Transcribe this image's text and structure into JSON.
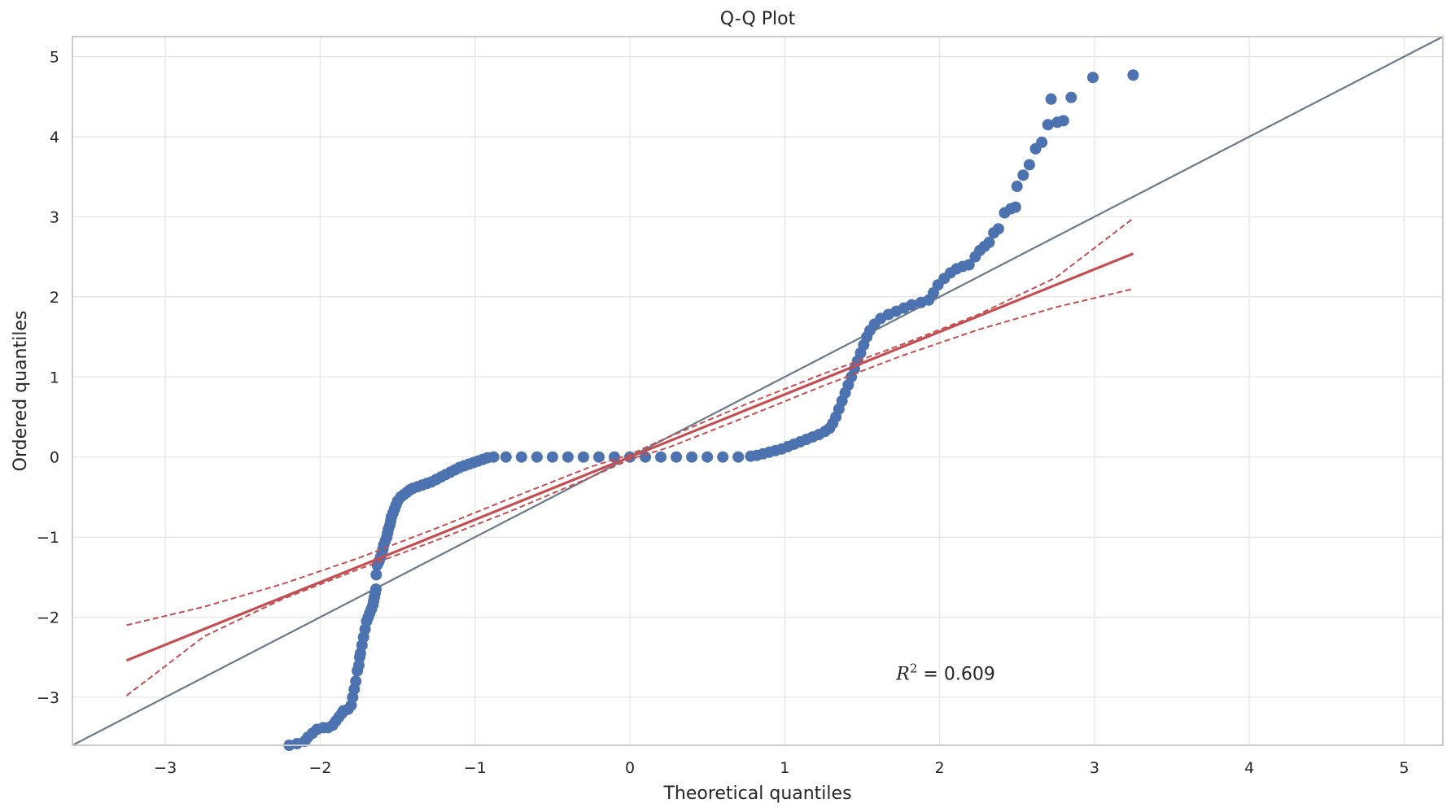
{
  "chart_data": {
    "type": "scatter",
    "title": "Q-Q Plot",
    "xlabel": "Theoretical quantiles",
    "ylabel": "Ordered quantiles",
    "xlim": [
      -3.6,
      5.25
    ],
    "ylim": [
      -3.6,
      5.25
    ],
    "x_ticks": [
      -3,
      -2,
      -1,
      0,
      1,
      2,
      3,
      4,
      5
    ],
    "y_ticks": [
      -3,
      -2,
      -1,
      0,
      1,
      2,
      3,
      4,
      5
    ],
    "x_tick_labels": [
      "−3",
      "−2",
      "−1",
      "0",
      "1",
      "2",
      "3",
      "4",
      "5"
    ],
    "y_tick_labels": [
      "−3",
      "−2",
      "−1",
      "0",
      "1",
      "2",
      "3",
      "4",
      "5"
    ],
    "grid": true,
    "annotation": {
      "prefix": "R",
      "sup": "2",
      "rest": " = 0.609",
      "x": 1.72,
      "y": -2.7
    },
    "colors": {
      "points": "#4c72b0",
      "fit": "#c44e52",
      "reference": "#6c7a89",
      "grid": "#e4e4e4",
      "spine": "#cccccc"
    },
    "reference_line": {
      "x": [
        -3.6,
        5.25
      ],
      "y": [
        -3.6,
        5.25
      ]
    },
    "fit_line": {
      "x": [
        -3.25,
        3.25
      ],
      "y": [
        -2.54,
        2.54
      ]
    },
    "confidence_band": {
      "x": [
        -3.25,
        -2.75,
        -2.25,
        -1.75,
        -1.25,
        -0.75,
        -0.25,
        0,
        0.25,
        0.75,
        1.25,
        1.75,
        2.25,
        2.75,
        3.25
      ],
      "upper": [
        -2.1,
        -1.87,
        -1.59,
        -1.26,
        -0.89,
        -0.5,
        -0.12,
        0.03,
        0.25,
        0.66,
        1.04,
        1.4,
        1.78,
        2.24,
        2.98
      ],
      "lower": [
        -2.98,
        -2.24,
        -1.78,
        -1.4,
        -1.04,
        -0.66,
        -0.25,
        -0.03,
        0.12,
        0.5,
        0.89,
        1.26,
        1.59,
        1.87,
        2.1
      ]
    },
    "points": [
      [
        -2.2,
        -3.6
      ],
      [
        -2.15,
        -3.58
      ],
      [
        -2.1,
        -3.55
      ],
      [
        -2.08,
        -3.5
      ],
      [
        -2.05,
        -3.45
      ],
      [
        -2.02,
        -3.4
      ],
      [
        -1.98,
        -3.38
      ],
      [
        -1.95,
        -3.38
      ],
      [
        -1.92,
        -3.35
      ],
      [
        -1.9,
        -3.3
      ],
      [
        -1.88,
        -3.25
      ],
      [
        -1.86,
        -3.2
      ],
      [
        -1.85,
        -3.17
      ],
      [
        -1.82,
        -3.15
      ],
      [
        -1.8,
        -3.1
      ],
      [
        -1.79,
        -3.0
      ],
      [
        -1.78,
        -2.9
      ],
      [
        -1.77,
        -2.8
      ],
      [
        -1.76,
        -2.67
      ],
      [
        -1.75,
        -2.6
      ],
      [
        -1.745,
        -2.5
      ],
      [
        -1.74,
        -2.45
      ],
      [
        -1.73,
        -2.35
      ],
      [
        -1.72,
        -2.25
      ],
      [
        -1.71,
        -2.15
      ],
      [
        -1.7,
        -2.05
      ],
      [
        -1.69,
        -2.0
      ],
      [
        -1.68,
        -1.95
      ],
      [
        -1.67,
        -1.9
      ],
      [
        -1.66,
        -1.85
      ],
      [
        -1.655,
        -1.8
      ],
      [
        -1.65,
        -1.75
      ],
      [
        -1.645,
        -1.7
      ],
      [
        -1.64,
        -1.65
      ],
      [
        -1.638,
        -1.47
      ],
      [
        -1.632,
        -1.35
      ],
      [
        -1.625,
        -1.32
      ],
      [
        -1.62,
        -1.3
      ],
      [
        -1.61,
        -1.25
      ],
      [
        -1.6,
        -1.2
      ],
      [
        -1.595,
        -1.15
      ],
      [
        -1.59,
        -1.1
      ],
      [
        -1.58,
        -1.05
      ],
      [
        -1.57,
        -1.0
      ],
      [
        -1.565,
        -0.95
      ],
      [
        -1.56,
        -0.9
      ],
      [
        -1.55,
        -0.85
      ],
      [
        -1.545,
        -0.8
      ],
      [
        -1.54,
        -0.75
      ],
      [
        -1.53,
        -0.7
      ],
      [
        -1.52,
        -0.65
      ],
      [
        -1.51,
        -0.6
      ],
      [
        -1.5,
        -0.55
      ],
      [
        -1.48,
        -0.5
      ],
      [
        -1.46,
        -0.47
      ],
      [
        -1.44,
        -0.44
      ],
      [
        -1.42,
        -0.41
      ],
      [
        -1.4,
        -0.39
      ],
      [
        -1.37,
        -0.37
      ],
      [
        -1.34,
        -0.35
      ],
      [
        -1.31,
        -0.33
      ],
      [
        -1.28,
        -0.31
      ],
      [
        -1.25,
        -0.28
      ],
      [
        -1.22,
        -0.25
      ],
      [
        -1.19,
        -0.22
      ],
      [
        -1.16,
        -0.19
      ],
      [
        -1.13,
        -0.16
      ],
      [
        -1.1,
        -0.13
      ],
      [
        -1.07,
        -0.11
      ],
      [
        -1.04,
        -0.09
      ],
      [
        -1.01,
        -0.07
      ],
      [
        -0.98,
        -0.05
      ],
      [
        -0.95,
        -0.03
      ],
      [
        -0.92,
        -0.01
      ],
      [
        -0.88,
        0.0
      ],
      [
        -0.8,
        0.0
      ],
      [
        -0.7,
        0.0
      ],
      [
        -0.6,
        0.0
      ],
      [
        -0.5,
        0.0
      ],
      [
        -0.4,
        0.0
      ],
      [
        -0.3,
        0.0
      ],
      [
        -0.2,
        0.0
      ],
      [
        -0.1,
        0.0
      ],
      [
        0.0,
        0.0
      ],
      [
        0.1,
        0.0
      ],
      [
        0.2,
        0.0
      ],
      [
        0.3,
        0.0
      ],
      [
        0.4,
        0.0
      ],
      [
        0.5,
        0.0
      ],
      [
        0.6,
        0.0
      ],
      [
        0.7,
        0.0
      ],
      [
        0.78,
        0.01
      ],
      [
        0.82,
        0.02
      ],
      [
        0.86,
        0.04
      ],
      [
        0.9,
        0.06
      ],
      [
        0.94,
        0.08
      ],
      [
        0.98,
        0.1
      ],
      [
        1.02,
        0.13
      ],
      [
        1.06,
        0.16
      ],
      [
        1.1,
        0.19
      ],
      [
        1.14,
        0.22
      ],
      [
        1.18,
        0.25
      ],
      [
        1.22,
        0.28
      ],
      [
        1.26,
        0.32
      ],
      [
        1.29,
        0.36
      ],
      [
        1.31,
        0.42
      ],
      [
        1.33,
        0.5
      ],
      [
        1.35,
        0.6
      ],
      [
        1.37,
        0.7
      ],
      [
        1.39,
        0.8
      ],
      [
        1.41,
        0.9
      ],
      [
        1.43,
        1.0
      ],
      [
        1.45,
        1.1
      ],
      [
        1.47,
        1.2
      ],
      [
        1.49,
        1.3
      ],
      [
        1.51,
        1.4
      ],
      [
        1.53,
        1.5
      ],
      [
        1.55,
        1.58
      ],
      [
        1.58,
        1.66
      ],
      [
        1.62,
        1.73
      ],
      [
        1.67,
        1.78
      ],
      [
        1.72,
        1.82
      ],
      [
        1.77,
        1.86
      ],
      [
        1.82,
        1.9
      ],
      [
        1.88,
        1.93
      ],
      [
        1.93,
        1.96
      ],
      [
        1.96,
        2.05
      ],
      [
        1.99,
        2.15
      ],
      [
        2.03,
        2.23
      ],
      [
        2.07,
        2.3
      ],
      [
        2.11,
        2.35
      ],
      [
        2.15,
        2.38
      ],
      [
        2.19,
        2.4
      ],
      [
        2.23,
        2.5
      ],
      [
        2.26,
        2.58
      ],
      [
        2.29,
        2.63
      ],
      [
        2.32,
        2.68
      ],
      [
        2.35,
        2.8
      ],
      [
        2.38,
        2.85
      ],
      [
        2.42,
        3.05
      ],
      [
        2.46,
        3.1
      ],
      [
        2.49,
        3.12
      ],
      [
        2.5,
        3.38
      ],
      [
        2.54,
        3.52
      ],
      [
        2.58,
        3.65
      ],
      [
        2.62,
        3.85
      ],
      [
        2.66,
        3.93
      ],
      [
        2.7,
        4.15
      ],
      [
        2.76,
        4.18
      ],
      [
        2.8,
        4.2
      ],
      [
        2.72,
        4.47
      ],
      [
        2.85,
        4.49
      ],
      [
        2.99,
        4.74
      ],
      [
        3.25,
        4.77
      ]
    ]
  }
}
